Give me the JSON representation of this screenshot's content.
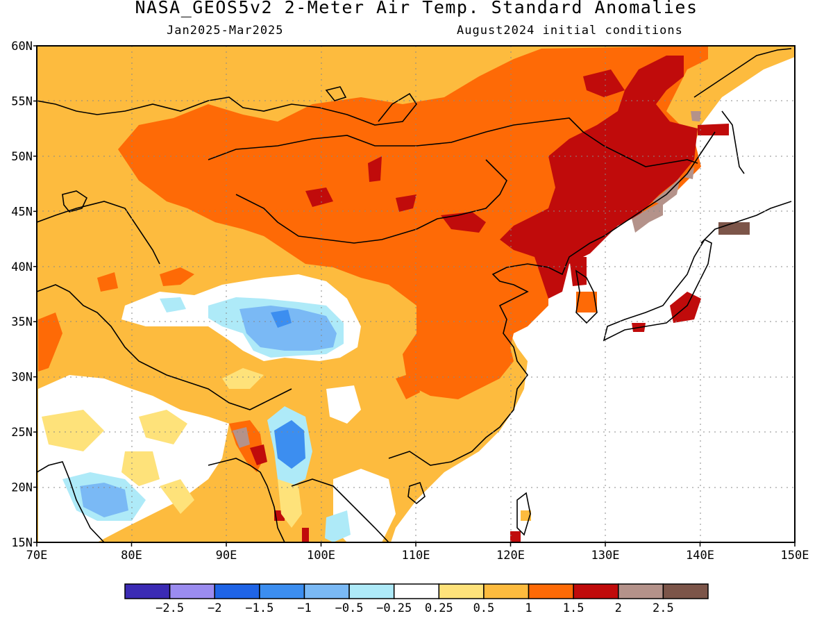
{
  "title": "NASA_GEOS5v2 2-Meter Air Temp. Standard Anomalies",
  "subtitle_left": "Jan2025-Mar2025",
  "subtitle_right": "August2024 initial conditions",
  "map": {
    "lon_range": [
      70,
      150
    ],
    "lat_range": [
      15,
      60
    ],
    "lon_ticks": [
      "70E",
      "80E",
      "90E",
      "100E",
      "110E",
      "120E",
      "130E",
      "140E",
      "150E"
    ],
    "lat_ticks": [
      "15N",
      "20N",
      "25N",
      "30N",
      "35N",
      "40N",
      "45N",
      "50N",
      "55N",
      "60N"
    ],
    "gridlines": true
  },
  "colorbar": {
    "colors": [
      "#3b2bb4",
      "#9b8cf0",
      "#1f64e6",
      "#3c8ef0",
      "#7ab9f5",
      "#aeeaf8",
      "#ffffff",
      "#fee27a",
      "#fdbb3e",
      "#fe6a06",
      "#c00b0b",
      "#b4928a",
      "#7c5549"
    ],
    "labels": [
      "-2.5",
      "-2",
      "-1.5",
      "-1",
      "-0.5",
      "-0.25",
      "0.25",
      "0.5",
      "1",
      "1.5",
      "2",
      "2.5"
    ]
  }
}
